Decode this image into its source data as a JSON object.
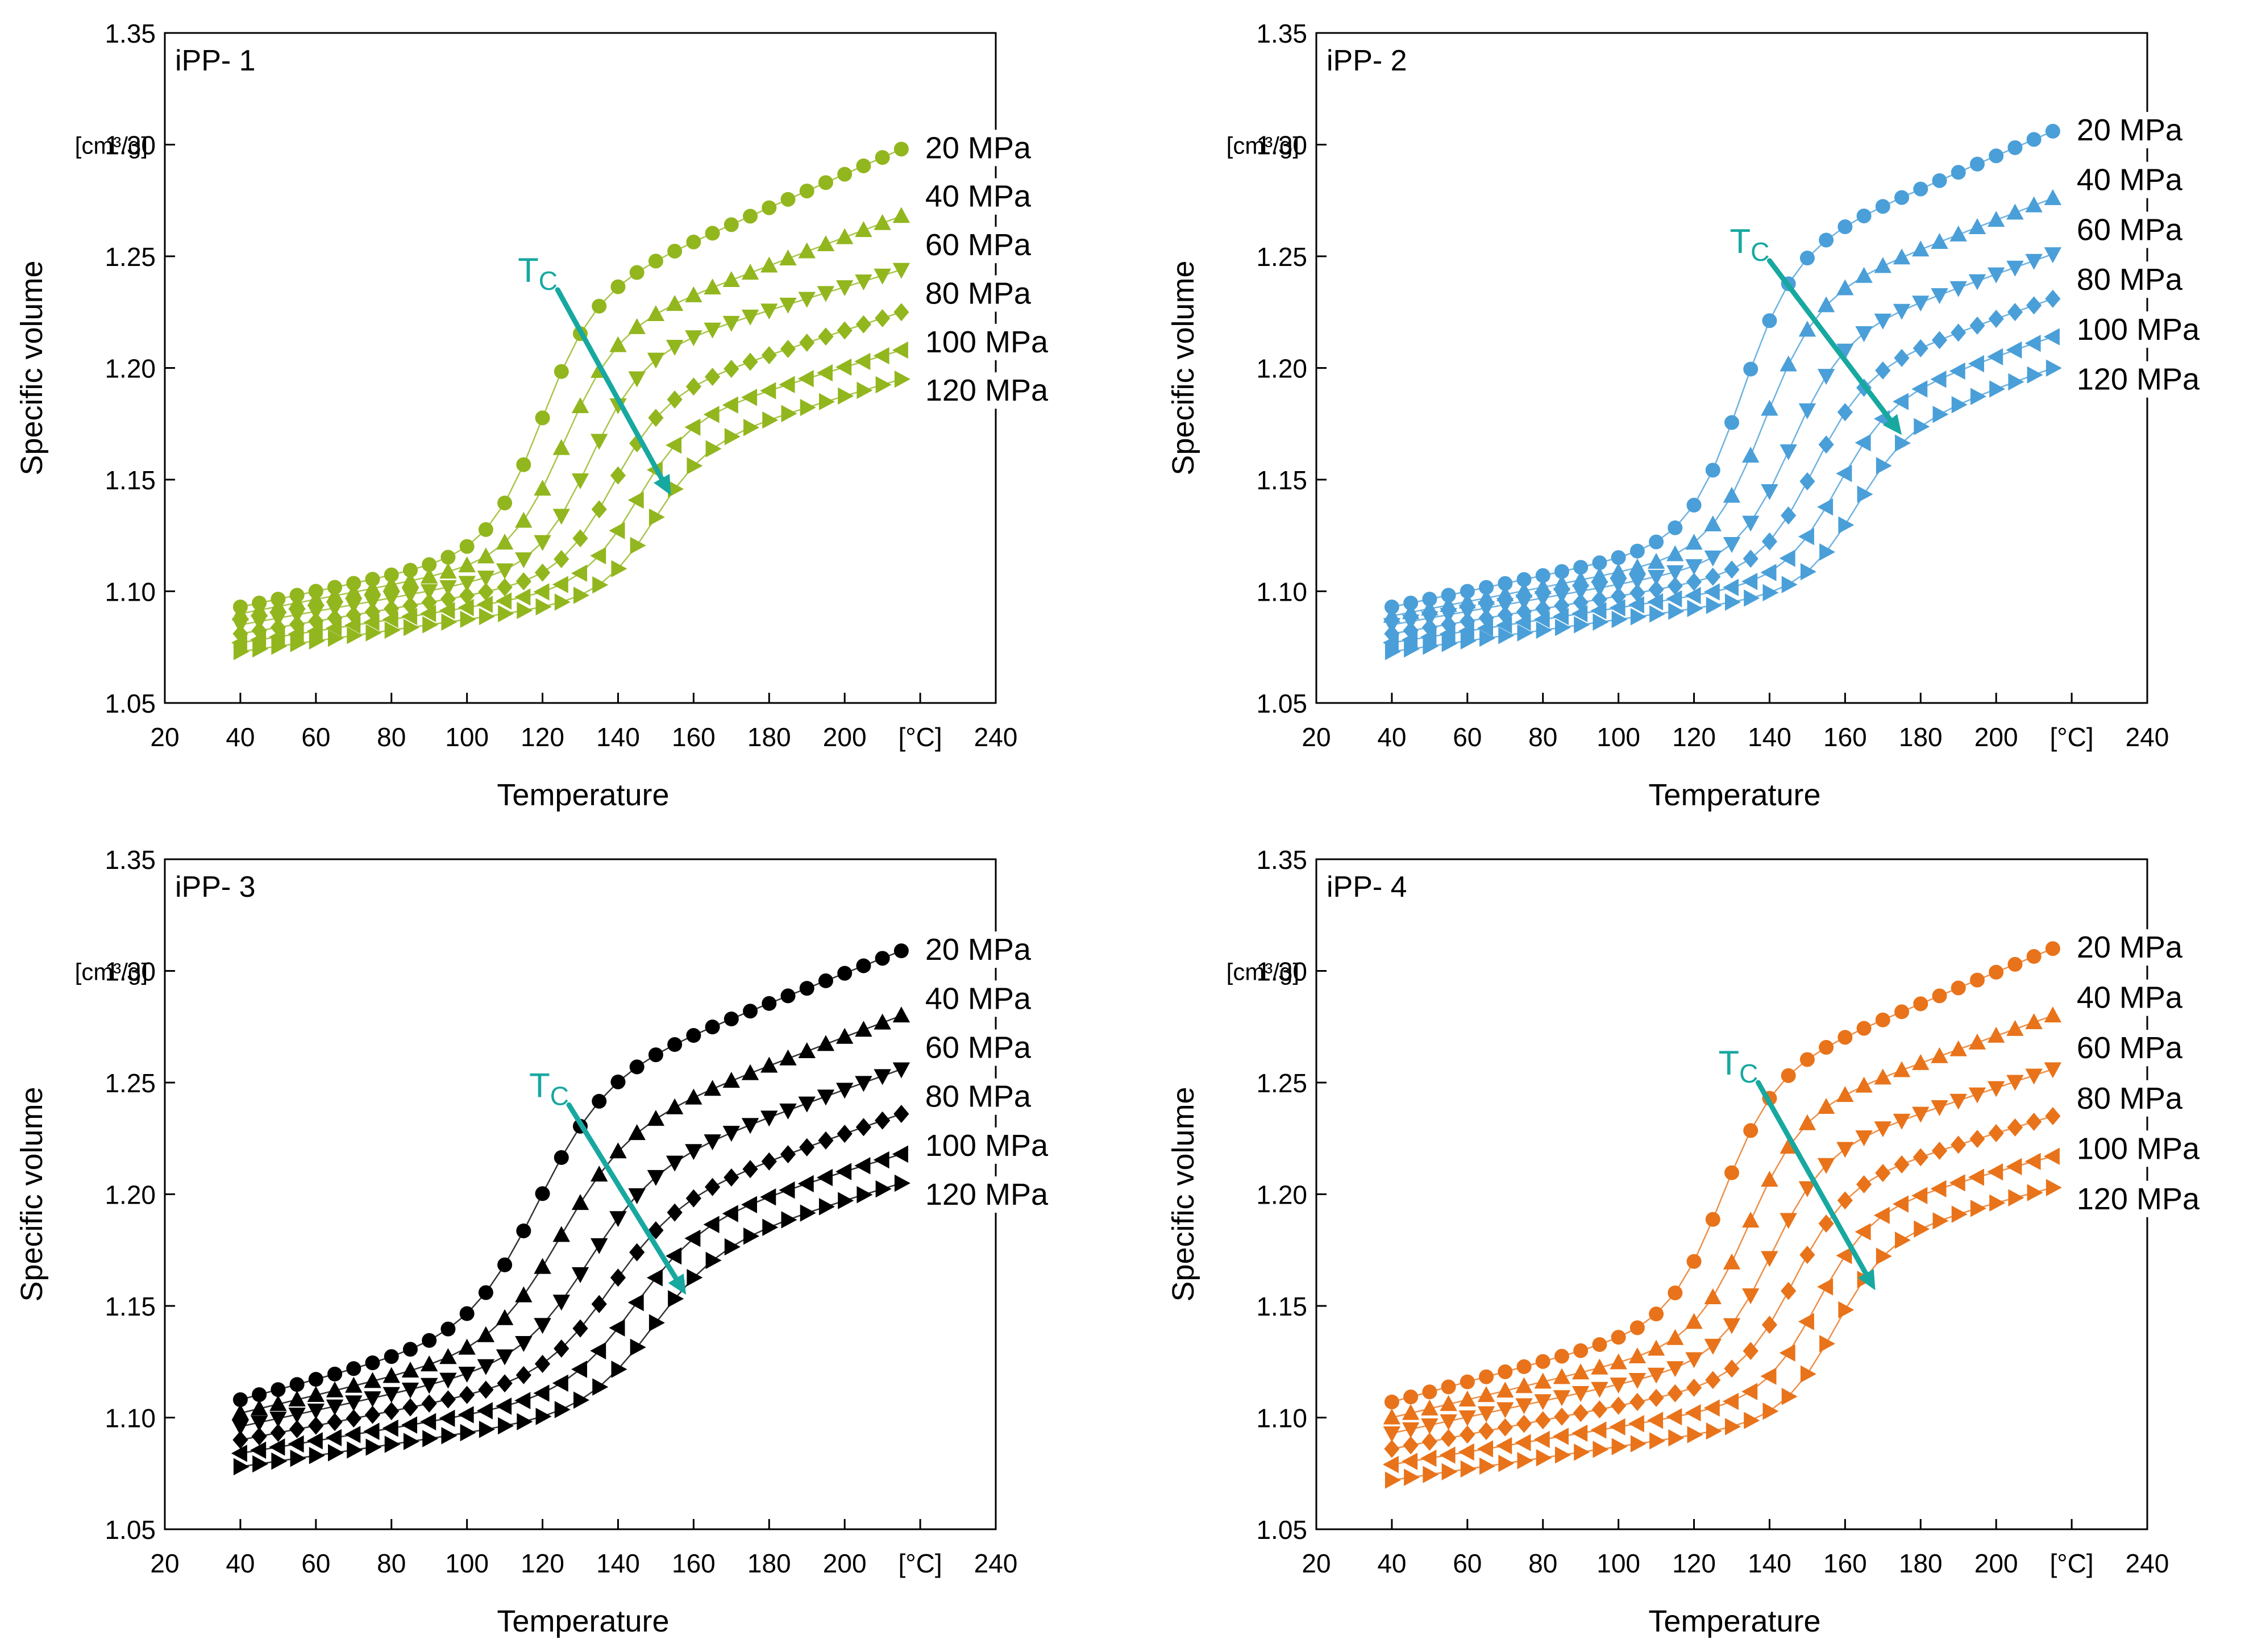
{
  "chart_data": [
    {
      "type": "scatter",
      "panel_label": "iPP- 1",
      "color": "#92B61E",
      "xlabel": "Temperature",
      "ylabel": "Specific volume",
      "x_unit": "[°C]",
      "y_unit": "[cm³/g]",
      "xlim": [
        20,
        240
      ],
      "ylim": [
        1.05,
        1.35
      ],
      "xticks": [
        "20",
        "40",
        "60",
        "80",
        "100",
        "120",
        "140",
        "160",
        "180",
        "200",
        "[°C]",
        "240"
      ],
      "yticks": [
        "1.05",
        "1.10",
        "1.15",
        "1.20",
        "1.25",
        "1.30",
        "1.35"
      ],
      "annotation": {
        "text": "T",
        "subscript": "C",
        "arrow_from": [
          124,
          1.235
        ],
        "arrow_to": [
          154,
          1.143
        ]
      },
      "x_range": [
        40,
        215
      ],
      "x_step": 5,
      "series": [
        {
          "name": "20 MPa",
          "marker": "circle",
          "start": 1.093,
          "low_slope": 0.00035,
          "tc": 119,
          "width": 7,
          "high_start": 1.226,
          "high_end": 1.298
        },
        {
          "name": "40 MPa",
          "marker": "triangle-up",
          "start": 1.09,
          "low_slope": 0.00032,
          "tc": 125,
          "width": 7,
          "high_start": 1.211,
          "high_end": 1.268
        },
        {
          "name": "60 MPa",
          "marker": "triangle-down",
          "start": 1.085,
          "low_slope": 0.0003,
          "tc": 132,
          "width": 7,
          "high_start": 1.201,
          "high_end": 1.244
        },
        {
          "name": "80 MPa",
          "marker": "diamond",
          "start": 1.081,
          "low_slope": 0.00028,
          "tc": 138,
          "width": 7,
          "high_start": 1.183,
          "high_end": 1.225
        },
        {
          "name": "100 MPa",
          "marker": "triangle-left",
          "start": 1.077,
          "low_slope": 0.00026,
          "tc": 144,
          "width": 7,
          "high_start": 1.172,
          "high_end": 1.208
        },
        {
          "name": "120 MPa",
          "marker": "triangle-right",
          "start": 1.073,
          "low_slope": 0.00024,
          "tc": 149,
          "width": 7,
          "high_start": 1.162,
          "high_end": 1.195
        }
      ]
    },
    {
      "type": "scatter",
      "panel_label": "iPP- 2",
      "color": "#4A9FD8",
      "xlabel": "Temperature",
      "ylabel": "Specific volume",
      "x_unit": "[°C]",
      "y_unit": "[cm³/g]",
      "xlim": [
        20,
        240
      ],
      "ylim": [
        1.05,
        1.35
      ],
      "xticks": [
        "20",
        "40",
        "60",
        "80",
        "100",
        "120",
        "140",
        "160",
        "180",
        "200",
        "[°C]",
        "240"
      ],
      "yticks": [
        "1.05",
        "1.10",
        "1.15",
        "1.20",
        "1.25",
        "1.30",
        "1.35"
      ],
      "annotation": {
        "text": "T",
        "subscript": "C",
        "arrow_from": [
          140,
          1.248
        ],
        "arrow_to": [
          175,
          1.17
        ]
      },
      "x_range": [
        40,
        215
      ],
      "x_step": 5,
      "series": [
        {
          "name": "20 MPa",
          "marker": "circle",
          "start": 1.093,
          "low_slope": 0.00035,
          "tc": 132,
          "width": 7,
          "high_start": 1.245,
          "high_end": 1.306
        },
        {
          "name": "40 MPa",
          "marker": "triangle-up",
          "start": 1.089,
          "low_slope": 0.00032,
          "tc": 138,
          "width": 7,
          "high_start": 1.226,
          "high_end": 1.276
        },
        {
          "name": "60 MPa",
          "marker": "triangle-down",
          "start": 1.085,
          "low_slope": 0.0003,
          "tc": 145,
          "width": 7,
          "high_start": 1.209,
          "high_end": 1.251
        },
        {
          "name": "80 MPa",
          "marker": "diamond",
          "start": 1.081,
          "low_slope": 0.00028,
          "tc": 151,
          "width": 7,
          "high_start": 1.193,
          "high_end": 1.231
        },
        {
          "name": "100 MPa",
          "marker": "triangle-left",
          "start": 1.077,
          "low_slope": 0.00026,
          "tc": 157,
          "width": 7,
          "high_start": 1.18,
          "high_end": 1.214
        },
        {
          "name": "120 MPa",
          "marker": "triangle-right",
          "start": 1.073,
          "low_slope": 0.00024,
          "tc": 162,
          "width": 7,
          "high_start": 1.168,
          "high_end": 1.2
        }
      ]
    },
    {
      "type": "scatter",
      "panel_label": "iPP- 3",
      "color": "#000000",
      "xlabel": "Temperature",
      "ylabel": "Specific volume",
      "x_unit": "[°C]",
      "y_unit": "[cm³/g]",
      "xlim": [
        20,
        240
      ],
      "ylim": [
        1.05,
        1.35
      ],
      "xticks": [
        "20",
        "40",
        "60",
        "80",
        "100",
        "120",
        "140",
        "160",
        "180",
        "200",
        "[°C]",
        "240"
      ],
      "yticks": [
        "1.05",
        "1.10",
        "1.15",
        "1.20",
        "1.25",
        "1.30",
        "1.35"
      ],
      "annotation": {
        "text": "T",
        "subscript": "C",
        "arrow_from": [
          127,
          1.24
        ],
        "arrow_to": [
          158,
          1.155
        ]
      },
      "x_range": [
        40,
        215
      ],
      "x_step": 5,
      "series": [
        {
          "name": "20 MPa",
          "marker": "circle",
          "start": 1.108,
          "low_slope": 0.00045,
          "tc": 118,
          "width": 9,
          "high_start": 1.244,
          "high_end": 1.309
        },
        {
          "name": "40 MPa",
          "marker": "triangle-up",
          "start": 1.102,
          "low_slope": 0.0004,
          "tc": 124,
          "width": 9,
          "high_start": 1.222,
          "high_end": 1.28
        },
        {
          "name": "60 MPa",
          "marker": "triangle-down",
          "start": 1.096,
          "low_slope": 0.00036,
          "tc": 131,
          "width": 9,
          "high_start": 1.205,
          "high_end": 1.256
        },
        {
          "name": "80 MPa",
          "marker": "diamond",
          "start": 1.09,
          "low_slope": 0.00032,
          "tc": 137,
          "width": 9,
          "high_start": 1.19,
          "high_end": 1.236
        },
        {
          "name": "100 MPa",
          "marker": "triangle-left",
          "start": 1.084,
          "low_slope": 0.00028,
          "tc": 143,
          "width": 9,
          "high_start": 1.181,
          "high_end": 1.218
        },
        {
          "name": "120 MPa",
          "marker": "triangle-right",
          "start": 1.078,
          "low_slope": 0.00025,
          "tc": 148,
          "width": 9,
          "high_start": 1.171,
          "high_end": 1.205
        }
      ]
    },
    {
      "type": "scatter",
      "panel_label": "iPP- 4",
      "color": "#E8731A",
      "xlabel": "Temperature",
      "ylabel": "Specific volume",
      "x_unit": "[°C]",
      "y_unit": "[cm³/g]",
      "xlim": [
        20,
        240
      ],
      "ylim": [
        1.05,
        1.35
      ],
      "xticks": [
        "20",
        "40",
        "60",
        "80",
        "100",
        "120",
        "140",
        "160",
        "180",
        "200",
        "[°C]",
        "240"
      ],
      "yticks": [
        "1.05",
        "1.10",
        "1.15",
        "1.20",
        "1.25",
        "1.30",
        "1.35"
      ],
      "annotation": {
        "text": "T",
        "subscript": "C",
        "arrow_from": [
          137,
          1.25
        ],
        "arrow_to": [
          168,
          1.157
        ]
      },
      "x_range": [
        40,
        215
      ],
      "x_step": 5,
      "series": [
        {
          "name": "20 MPa",
          "marker": "circle",
          "start": 1.107,
          "low_slope": 0.00045,
          "tc": 127,
          "width": 7,
          "high_start": 1.248,
          "high_end": 1.31
        },
        {
          "name": "40 MPa",
          "marker": "triangle-up",
          "start": 1.1,
          "low_slope": 0.0004,
          "tc": 134,
          "width": 7,
          "high_start": 1.231,
          "high_end": 1.28
        },
        {
          "name": "60 MPa",
          "marker": "triangle-down",
          "start": 1.093,
          "low_slope": 0.00036,
          "tc": 140,
          "width": 7,
          "high_start": 1.214,
          "high_end": 1.256
        },
        {
          "name": "80 MPa",
          "marker": "diamond",
          "start": 1.086,
          "low_slope": 0.00032,
          "tc": 146,
          "width": 7,
          "high_start": 1.2,
          "high_end": 1.235
        },
        {
          "name": "100 MPa",
          "marker": "triangle-left",
          "start": 1.079,
          "low_slope": 0.00028,
          "tc": 152,
          "width": 7,
          "high_start": 1.188,
          "high_end": 1.217
        },
        {
          "name": "120 MPa",
          "marker": "triangle-right",
          "start": 1.072,
          "low_slope": 0.00025,
          "tc": 157,
          "width": 7,
          "high_start": 1.177,
          "high_end": 1.203
        }
      ]
    }
  ]
}
